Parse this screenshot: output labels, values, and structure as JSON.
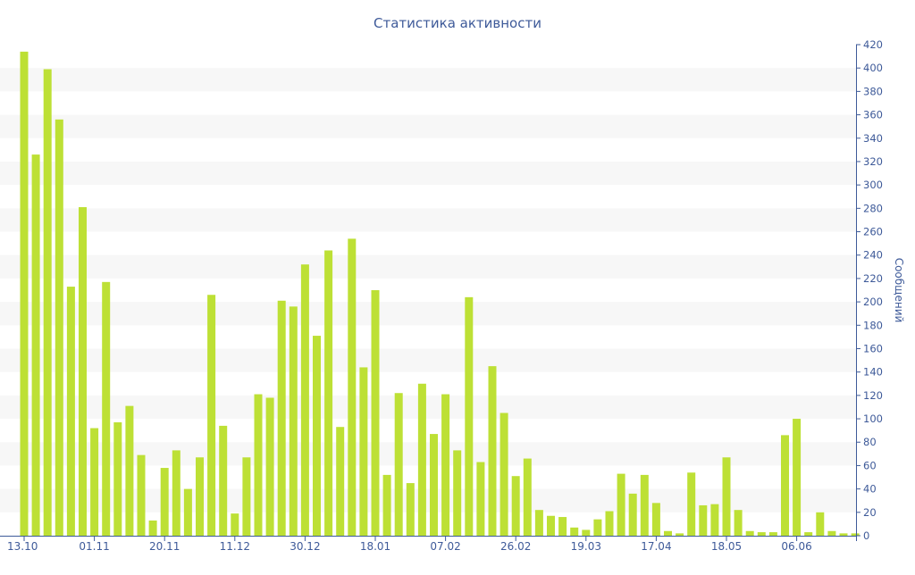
{
  "chart_data": {
    "type": "bar",
    "title": "Статистика активности",
    "ylabel": "Сообщений",
    "xlabel": "",
    "ylim": [
      0,
      420
    ],
    "y_ticks": [
      0,
      20,
      40,
      60,
      80,
      100,
      120,
      140,
      160,
      180,
      200,
      220,
      240,
      260,
      280,
      300,
      320,
      340,
      360,
      380,
      400,
      420
    ],
    "y_axis_side": "right",
    "x_tick_labels": [
      {
        "index": 0,
        "label": "13.10"
      },
      {
        "index": 6,
        "label": "01.11"
      },
      {
        "index": 12,
        "label": "20.11"
      },
      {
        "index": 18,
        "label": "11.12"
      },
      {
        "index": 24,
        "label": "30.12"
      },
      {
        "index": 30,
        "label": "18.01"
      },
      {
        "index": 36,
        "label": "07.02"
      },
      {
        "index": 42,
        "label": "26.02"
      },
      {
        "index": 48,
        "label": "19.03"
      },
      {
        "index": 54,
        "label": "17.04"
      },
      {
        "index": 60,
        "label": "18.05"
      },
      {
        "index": 66,
        "label": "06.06"
      }
    ],
    "values": [
      414,
      326,
      399,
      356,
      213,
      281,
      92,
      217,
      97,
      111,
      69,
      13,
      58,
      73,
      40,
      67,
      206,
      94,
      19,
      67,
      121,
      118,
      201,
      196,
      232,
      171,
      244,
      93,
      254,
      144,
      210,
      52,
      122,
      45,
      130,
      87,
      121,
      73,
      204,
      63,
      145,
      105,
      51,
      66,
      22,
      17,
      16,
      7,
      5,
      14,
      21,
      53,
      36,
      52,
      28,
      4,
      2,
      54,
      26,
      27,
      67,
      22,
      4,
      3,
      3,
      86,
      100,
      3,
      20,
      4,
      2,
      2
    ],
    "grid": "alternating horizontal bands",
    "legend": "none",
    "colors": {
      "bar": "#bde035",
      "band": "#f7f7f7",
      "text": "#3e5a99",
      "axis": "#3e5a99",
      "baseline": "#3e5a99"
    }
  }
}
